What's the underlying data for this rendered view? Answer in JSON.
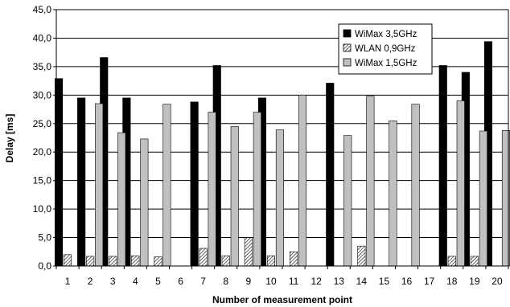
{
  "chart_data": {
    "type": "bar",
    "title": "",
    "xlabel": "Number of measurement point",
    "ylabel": "Delay [ms]",
    "ylim": [
      0,
      45
    ],
    "ytick_step": 5,
    "ytick_labels": [
      "0,0",
      "5,0",
      "10,0",
      "15,0",
      "20,0",
      "25,0",
      "30,0",
      "35,0",
      "40,0",
      "45,0"
    ],
    "categories": [
      "1",
      "2",
      "3",
      "4",
      "5",
      "6",
      "7",
      "8",
      "9",
      "10",
      "11",
      "12",
      "13",
      "14",
      "15",
      "16",
      "17",
      "18",
      "19",
      "20"
    ],
    "grid": "horizontal",
    "legend_position": "top-right",
    "series": [
      {
        "name": "WiMax 3,5GHz",
        "color": "#000000",
        "pattern": "solid",
        "values": [
          32.9,
          29.5,
          36.6,
          29.5,
          null,
          null,
          28.8,
          35.2,
          null,
          29.5,
          null,
          null,
          32.1,
          null,
          null,
          null,
          null,
          35.2,
          34.0,
          39.4
        ]
      },
      {
        "name": "WLAN 0,9GHz",
        "color": "#ffffff",
        "pattern": "hatched",
        "values": [
          2.0,
          1.7,
          1.7,
          1.8,
          1.6,
          null,
          3.1,
          1.8,
          5.0,
          1.8,
          2.5,
          null,
          null,
          3.5,
          null,
          null,
          null,
          1.7,
          1.7,
          null
        ]
      },
      {
        "name": "WiMax 1,5GHz",
        "color": "#c0c0c0",
        "pattern": "solid",
        "values": [
          null,
          28.5,
          23.4,
          22.3,
          28.4,
          null,
          27.0,
          24.5,
          27.0,
          23.9,
          30.0,
          null,
          22.9,
          29.8,
          25.5,
          28.4,
          null,
          29.0,
          23.7,
          23.8
        ]
      }
    ]
  }
}
